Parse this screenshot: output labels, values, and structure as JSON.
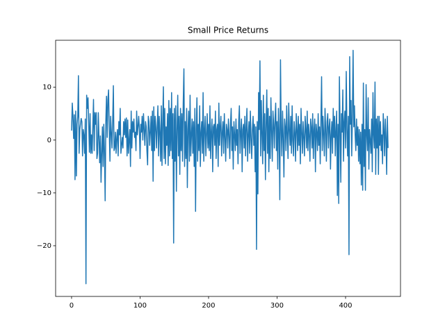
{
  "chart_data": {
    "type": "line",
    "title": "Small Price Returns",
    "color": "#1f77b4",
    "values": [
      1.8,
      7.0,
      4.5,
      0.3,
      4.8,
      -7.5,
      5.5,
      -6.8,
      3.0,
      4.5,
      12.2,
      -2.5,
      2.0,
      3.1,
      4.1,
      3.5,
      -3.0,
      2.0,
      1.0,
      -2.5,
      4.0,
      -27.2,
      8.5,
      6.0,
      8.0,
      3.2,
      -2.3,
      5.0,
      -2.5,
      1.0,
      -2.5,
      2.5,
      7.7,
      -2.0,
      5.2,
      3.0,
      5.2,
      -3.5,
      -2.5,
      5.2,
      0.5,
      -4.3,
      0.8,
      -8.0,
      -2.5,
      2.5,
      -5.0,
      3.0,
      -2.0,
      -11.5,
      3.5,
      8.3,
      0.5,
      7.6,
      9.5,
      2.0,
      -4.0,
      4.5,
      1.5,
      -1.5,
      3.5,
      10.3,
      -2.0,
      -1.5,
      1.5,
      -2.5,
      0.5,
      2.0,
      -3.0,
      3.5,
      1.0,
      6.0,
      -2.5,
      -1.0,
      0.5,
      -1.5,
      3.5,
      1.0,
      4.0,
      0.5,
      4.2,
      -3.0,
      3.8,
      -2.5,
      0.0,
      2.0,
      -5.0,
      5.5,
      -1.5,
      3.5,
      1.5,
      4.0,
      0.5,
      1.5,
      -2.0,
      5.5,
      1.0,
      2.5,
      4.5,
      2.0,
      -3.5,
      3.0,
      1.5,
      4.5,
      0.0,
      5.0,
      2.0,
      -1.0,
      3.5,
      2.5,
      -2.0,
      -4.7,
      4.5,
      3.5,
      -1.0,
      1.5,
      4.5,
      -2.0,
      5.5,
      -7.8,
      6.3,
      -2.0,
      4.5,
      2.5,
      -1.5,
      2.5,
      6.5,
      -3.0,
      4.5,
      1.5,
      -4.0,
      6.5,
      -4.8,
      3.0,
      10.1,
      -3.5,
      6.0,
      -4.5,
      2.5,
      -1.0,
      5.0,
      -4.8,
      7.5,
      -3.0,
      6.0,
      -2.0,
      9.0,
      -3.5,
      5.0,
      -19.5,
      6.0,
      -4.0,
      6.5,
      -9.7,
      2.0,
      8.5,
      -3.0,
      4.5,
      -6.5,
      6.0,
      -2.0,
      5.0,
      -4.0,
      7.0,
      13.5,
      -5.0,
      3.5,
      -3.5,
      6.0,
      -9.0,
      2.0,
      5.5,
      -4.0,
      8.5,
      -3.0,
      1.0,
      4.0,
      -2.5,
      3.5,
      -5.0,
      6.0,
      -13.5,
      2.0,
      8.0,
      -4.0,
      3.0,
      -2.0,
      6.5,
      -5.0,
      1.5,
      3.5,
      -2.5,
      9.0,
      -4.0,
      2.0,
      4.5,
      -3.0,
      1.0,
      5.0,
      -1.5,
      3.0,
      -2.0,
      6.5,
      -3.5,
      1.5,
      4.0,
      -6.0,
      2.5,
      3.0,
      -1.0,
      5.5,
      -3.5,
      2.0,
      3.0,
      -5.0,
      7.0,
      -1.0,
      2.5,
      4.5,
      -3.0,
      1.5,
      3.5,
      -2.5,
      5.0,
      0.5,
      -4.0,
      3.0,
      2.0,
      -1.5,
      4.0,
      1.0,
      -3.5,
      3.0,
      6.0,
      -2.0,
      2.5,
      -5.5,
      3.5,
      1.0,
      -2.0,
      4.0,
      -1.0,
      2.0,
      -4.5,
      3.5,
      6.5,
      -2.5,
      1.5,
      4.0,
      -6.0,
      2.0,
      3.0,
      -1.5,
      4.5,
      -3.0,
      2.5,
      6.0,
      -4.0,
      1.0,
      3.5,
      -2.5,
      5.5,
      0.5,
      -3.5,
      2.0,
      4.5,
      -1.0,
      3.0,
      -6.0,
      2.5,
      -20.7,
      3.5,
      -10.2,
      9.0,
      2.0,
      15.0,
      -3.0,
      7.5,
      1.0,
      -4.5,
      8.5,
      -2.0,
      5.0,
      -7.5,
      3.0,
      9.5,
      -2.5,
      6.0,
      -6.0,
      4.5,
      -3.5,
      8.0,
      2.0,
      -4.0,
      5.5,
      3.0,
      -1.5,
      4.0,
      7.0,
      -2.0,
      3.5,
      -5.5,
      6.0,
      1.0,
      -11.3,
      15.2,
      2.0,
      -3.0,
      5.5,
      0.5,
      -7.0,
      4.0,
      2.5,
      -2.0,
      6.5,
      1.0,
      -3.5,
      7.0,
      2.0,
      -1.0,
      4.5,
      -2.5,
      6.5,
      0.0,
      -3.0,
      3.5,
      1.5,
      -4.0,
      5.0,
      2.0,
      -2.0,
      4.5,
      -1.0,
      3.0,
      -4.5,
      6.0,
      1.5,
      -2.5,
      3.5,
      0.5,
      -3.0,
      4.5,
      2.0,
      -1.5,
      5.5,
      -2.0,
      3.0,
      1.0,
      -4.0,
      4.0,
      2.5,
      -1.5,
      5.0,
      -3.5,
      2.0,
      4.0,
      -6.0,
      3.0,
      1.5,
      -2.0,
      5.0,
      -1.0,
      2.5,
      -4.5,
      3.5,
      12.0,
      -2.0,
      4.5,
      1.0,
      -3.0,
      6.0,
      2.0,
      -4.0,
      3.5,
      5.0,
      -1.5,
      2.5,
      4.0,
      -5.5,
      1.0,
      3.5,
      -2.5,
      6.0,
      0.5,
      4.5,
      -3.0,
      2.0,
      5.5,
      -10.5,
      3.0,
      -12.0,
      12.0,
      2.5,
      -8.0,
      5.0,
      1.5,
      9.5,
      -4.0,
      3.5,
      5.5,
      -1.5,
      13.0,
      2.0,
      -3.0,
      4.5,
      -21.7,
      15.8,
      3.0,
      7.5,
      -3.0,
      5.0,
      17.0,
      2.5,
      6.5,
      1.0,
      -2.0,
      4.0,
      -1.0,
      2.5,
      -4.0,
      2.0,
      -4.5,
      1.5,
      -8.5,
      3.0,
      -9.5,
      10.8,
      -5.0,
      2.0,
      -9.5,
      10.5,
      1.0,
      -2.0,
      8.0,
      -5.5,
      2.0,
      0.0,
      -2.5,
      4.0,
      -6.0,
      9.0,
      1.0,
      -1.5,
      11.0,
      -6.5,
      4.0,
      -1.5,
      4.5,
      -6.5,
      4.5,
      -1.0,
      3.5,
      -2.0,
      1.0,
      -4.5,
      5.0,
      2.0,
      -3.0,
      4.0,
      0.5,
      -6.5,
      4.5,
      -1.5
    ],
    "xlim": [
      -23.3,
      480.2
    ],
    "xticks": [
      0,
      100,
      200,
      300,
      400
    ],
    "ylim": [
      -29.6,
      18.9
    ],
    "yticks": [
      {
        "value": -20,
        "label": "−20"
      },
      {
        "value": -10,
        "label": "−10"
      },
      0,
      10
    ],
    "grid": false
  }
}
